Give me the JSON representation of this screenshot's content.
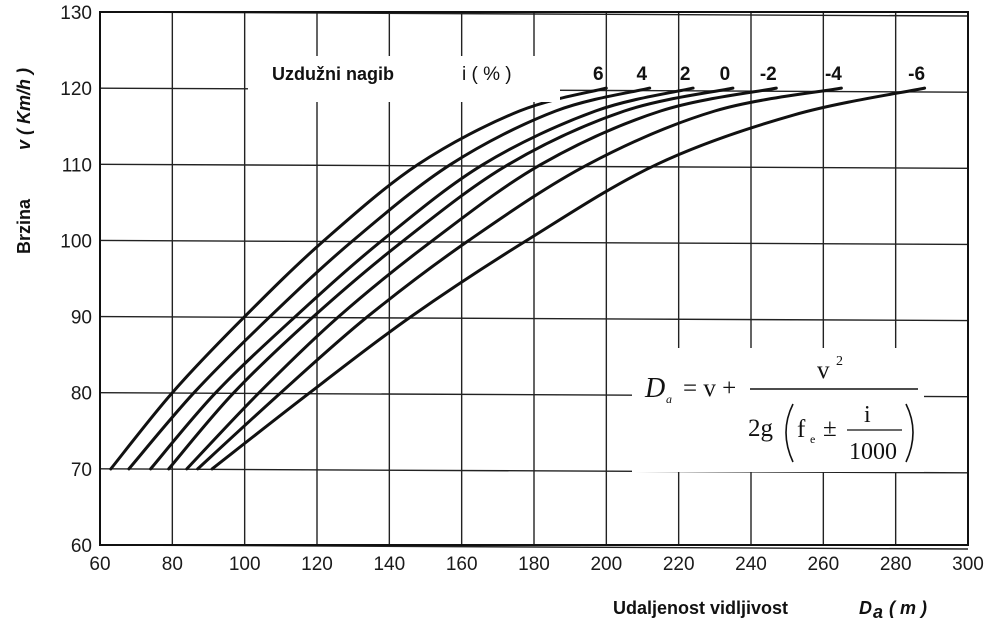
{
  "chart_data": {
    "type": "line",
    "xlabel": "Udaljenost vidljivost",
    "xlabel_symbol": "D",
    "xlabel_subscript": "a",
    "xlabel_unit": "( m )",
    "ylabel": "Brzina",
    "ylabel_symbol": "v ( Km/h )",
    "xlim": [
      60,
      300
    ],
    "ylim": [
      60,
      130
    ],
    "xticks": [
      "60",
      "80",
      "100",
      "120",
      "140",
      "160",
      "180",
      "200",
      "220",
      "240",
      "260",
      "280",
      "300"
    ],
    "yticks": [
      "60",
      "70",
      "80",
      "90",
      "100",
      "110",
      "120",
      "130"
    ],
    "grid": true,
    "legend_title": "Uzdužni nagib",
    "legend_unit": "i ( % )",
    "formula": {
      "lhs": "D",
      "lhs_sub": "a",
      "eq": "= v +",
      "numerator": "v",
      "numerator_sup": "2",
      "den_prefix": "2g",
      "den_f": "f",
      "den_f_sub": "e",
      "pm": "±",
      "frac_num": "i",
      "frac_den": "1000"
    },
    "series": [
      {
        "name": "6",
        "points": [
          [
            63,
            70
          ],
          [
            80,
            80
          ],
          [
            100,
            90
          ],
          [
            122,
            100
          ],
          [
            148,
            110
          ],
          [
            176,
            117
          ],
          [
            200,
            120
          ]
        ]
      },
      {
        "name": "4",
        "points": [
          [
            68,
            70
          ],
          [
            86,
            80
          ],
          [
            107,
            90
          ],
          [
            130,
            100
          ],
          [
            157,
            110
          ],
          [
            186,
            117
          ],
          [
            212,
            120
          ]
        ]
      },
      {
        "name": "2",
        "points": [
          [
            74,
            70
          ],
          [
            92,
            80
          ],
          [
            114,
            90
          ],
          [
            138,
            100
          ],
          [
            166,
            110
          ],
          [
            197,
            117
          ],
          [
            224,
            120
          ]
        ]
      },
      {
        "name": "0",
        "points": [
          [
            79,
            70
          ],
          [
            97,
            80
          ],
          [
            119,
            90
          ],
          [
            144,
            100
          ],
          [
            173,
            110
          ],
          [
            205,
            117
          ],
          [
            235,
            120
          ]
        ]
      },
      {
        "name": "-2",
        "points": [
          [
            84,
            70
          ],
          [
            104,
            80
          ],
          [
            126,
            90
          ],
          [
            152,
            100
          ],
          [
            182,
            110
          ],
          [
            215,
            117
          ],
          [
            247,
            120
          ]
        ]
      },
      {
        "name": "-4",
        "points": [
          [
            87,
            70
          ],
          [
            110,
            80
          ],
          [
            134,
            90
          ],
          [
            162,
            100
          ],
          [
            195,
            110
          ],
          [
            230,
            117
          ],
          [
            265,
            120
          ]
        ]
      },
      {
        "name": "-6",
        "points": [
          [
            91,
            70
          ],
          [
            118,
            80
          ],
          [
            146,
            90
          ],
          [
            178,
            100
          ],
          [
            214,
            110
          ],
          [
            252,
            116.5
          ],
          [
            288,
            120
          ]
        ]
      }
    ]
  }
}
